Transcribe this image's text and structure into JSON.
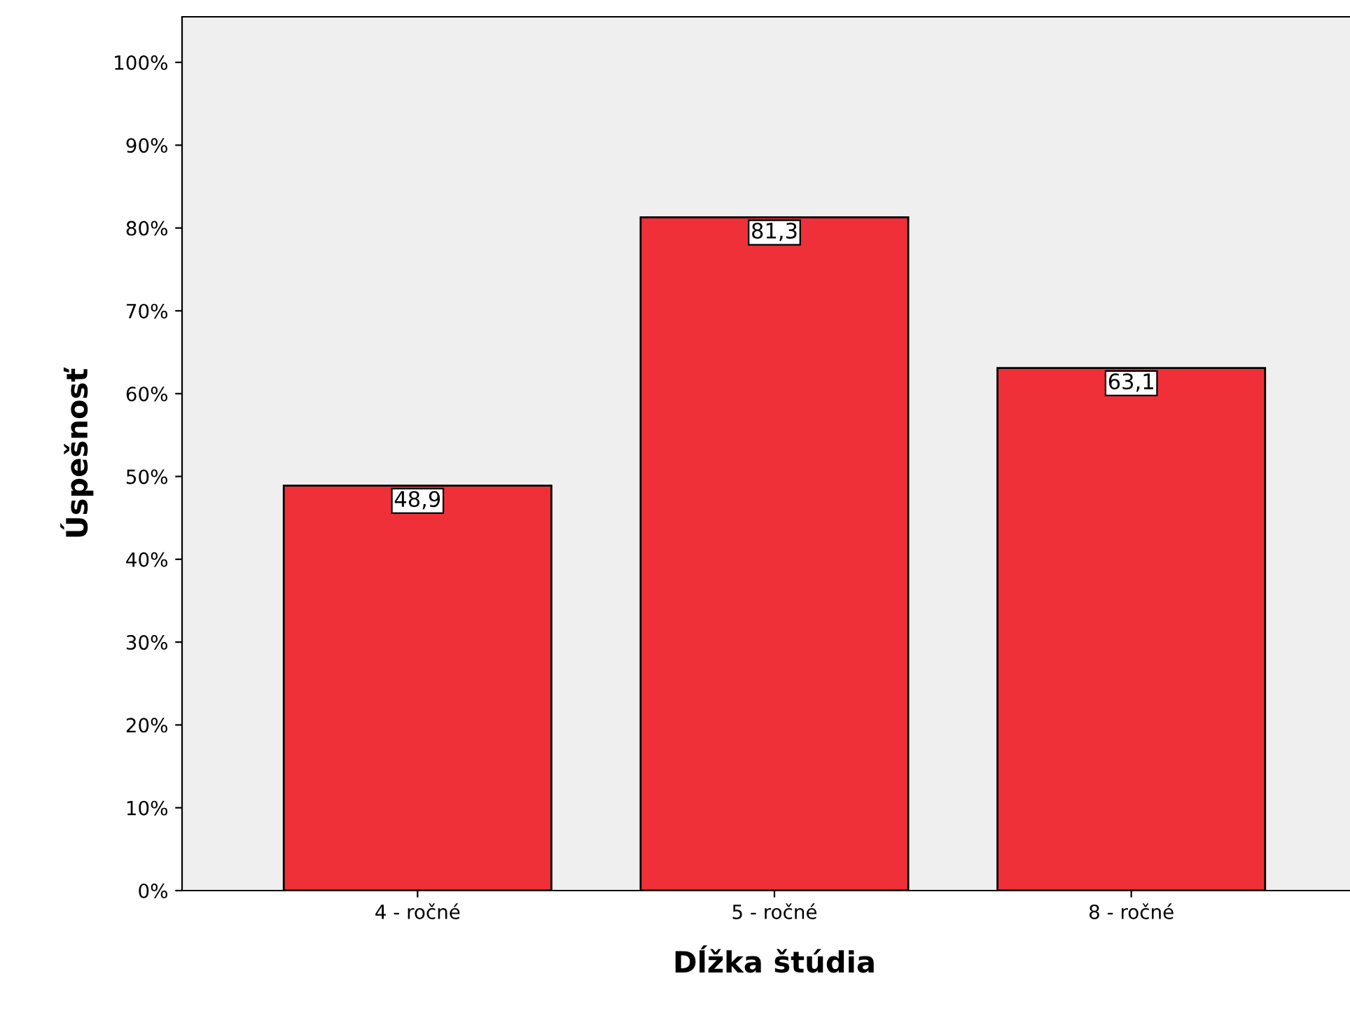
{
  "chart_data": {
    "type": "bar",
    "xlabel": "Dĺžka štúdia",
    "ylabel": "Úspešnosť",
    "categories": [
      "4 - ročné",
      "5 - ročné",
      "8 - ročné"
    ],
    "values": [
      48.9,
      81.3,
      63.1
    ],
    "value_labels": [
      "48,9",
      "81,3",
      "63,1"
    ],
    "color": "#ef3038",
    "ylim": [
      0,
      105.5
    ],
    "yticks": [
      {
        "value": 0,
        "label": "0%"
      },
      {
        "value": 10,
        "label": "10%"
      },
      {
        "value": 20,
        "label": "20%"
      },
      {
        "value": 30,
        "label": "30%"
      },
      {
        "value": 40,
        "label": "40%"
      },
      {
        "value": 50,
        "label": "50%"
      },
      {
        "value": 60,
        "label": "60%"
      },
      {
        "value": 70,
        "label": "70%"
      },
      {
        "value": 80,
        "label": "80%"
      },
      {
        "value": 90,
        "label": "90%"
      },
      {
        "value": 100,
        "label": "100%"
      }
    ],
    "grid": false,
    "legend": false
  }
}
